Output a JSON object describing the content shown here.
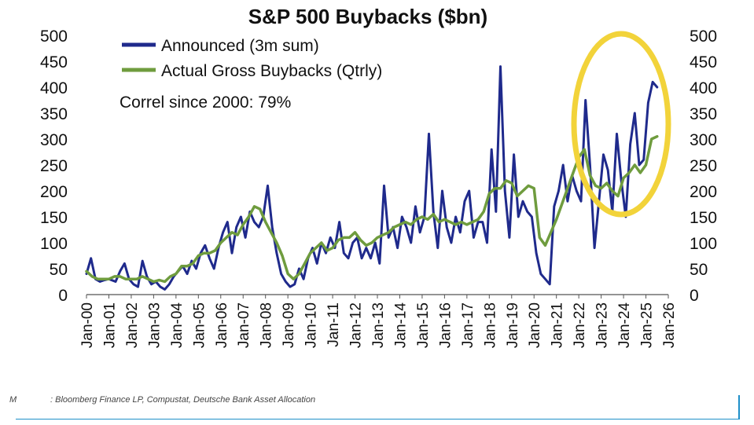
{
  "chart_data": {
    "type": "line",
    "title": "S&P 500 Buybacks ($bn)",
    "annotation": "Correl since 2000: 79%",
    "ylim": [
      0,
      500
    ],
    "yticks": [
      0,
      50,
      100,
      150,
      200,
      250,
      300,
      350,
      400,
      450,
      500
    ],
    "xlim": [
      2000,
      2026
    ],
    "xticks": [
      "Jan-00",
      "Jan-01",
      "Jan-02",
      "Jan-03",
      "Jan-04",
      "Jan-05",
      "Jan-06",
      "Jan-07",
      "Jan-08",
      "Jan-09",
      "Jan-10",
      "Jan-11",
      "Jan-12",
      "Jan-13",
      "Jan-14",
      "Jan-15",
      "Jan-16",
      "Jan-17",
      "Jan-18",
      "Jan-19",
      "Jan-20",
      "Jan-21",
      "Jan-22",
      "Jan-23",
      "Jan-24",
      "Jan-25",
      "Jan-26"
    ],
    "legend_position": "top-left",
    "series": [
      {
        "name": "Announced (3m sum)",
        "color": "#1f2a8c",
        "x": [
          2000.0,
          2000.2,
          2000.4,
          2000.6,
          2000.8,
          2001.0,
          2001.3,
          2001.5,
          2001.7,
          2001.9,
          2002.1,
          2002.3,
          2002.5,
          2002.7,
          2002.9,
          2003.1,
          2003.3,
          2003.5,
          2003.7,
          2003.9,
          2004.1,
          2004.3,
          2004.5,
          2004.7,
          2004.9,
          2005.1,
          2005.3,
          2005.5,
          2005.7,
          2005.9,
          2006.1,
          2006.3,
          2006.5,
          2006.7,
          2006.9,
          2007.1,
          2007.3,
          2007.5,
          2007.7,
          2007.9,
          2008.1,
          2008.3,
          2008.5,
          2008.7,
          2008.9,
          2009.1,
          2009.3,
          2009.5,
          2009.7,
          2009.9,
          2010.1,
          2010.3,
          2010.5,
          2010.7,
          2010.9,
          2011.1,
          2011.3,
          2011.5,
          2011.7,
          2011.9,
          2012.1,
          2012.3,
          2012.5,
          2012.7,
          2012.9,
          2013.1,
          2013.3,
          2013.5,
          2013.7,
          2013.9,
          2014.1,
          2014.3,
          2014.5,
          2014.7,
          2014.9,
          2015.1,
          2015.3,
          2015.5,
          2015.7,
          2015.9,
          2016.1,
          2016.3,
          2016.5,
          2016.7,
          2016.9,
          2017.1,
          2017.3,
          2017.5,
          2017.7,
          2017.9,
          2018.1,
          2018.3,
          2018.5,
          2018.7,
          2018.9,
          2019.1,
          2019.3,
          2019.5,
          2019.7,
          2019.9,
          2020.1,
          2020.3,
          2020.5,
          2020.7,
          2020.9,
          2021.1,
          2021.3,
          2021.5,
          2021.7,
          2021.9,
          2022.1,
          2022.3,
          2022.5,
          2022.7,
          2022.9,
          2023.1,
          2023.3,
          2023.5,
          2023.7,
          2023.9,
          2024.1,
          2024.3,
          2024.5,
          2024.7,
          2024.9,
          2025.1,
          2025.3,
          2025.5
        ],
        "values": [
          40,
          70,
          30,
          25,
          28,
          30,
          25,
          45,
          60,
          30,
          20,
          15,
          65,
          35,
          20,
          25,
          15,
          10,
          20,
          35,
          45,
          55,
          40,
          65,
          50,
          80,
          95,
          70,
          50,
          90,
          120,
          140,
          80,
          130,
          150,
          110,
          160,
          140,
          130,
          150,
          210,
          130,
          80,
          40,
          25,
          15,
          20,
          50,
          30,
          70,
          90,
          60,
          100,
          80,
          110,
          90,
          140,
          80,
          70,
          100,
          110,
          70,
          90,
          70,
          100,
          60,
          210,
          110,
          130,
          90,
          150,
          130,
          100,
          170,
          120,
          150,
          310,
          160,
          90,
          200,
          130,
          100,
          150,
          120,
          180,
          200,
          110,
          140,
          140,
          100,
          280,
          160,
          440,
          200,
          110,
          270,
          150,
          180,
          160,
          150,
          80,
          40,
          30,
          20,
          170,
          200,
          250,
          180,
          230,
          200,
          180,
          375,
          250,
          90,
          180,
          270,
          240,
          160,
          310,
          220,
          150,
          290,
          350,
          250,
          260,
          370,
          410,
          400
        ]
      },
      {
        "name": "Actual Gross Buybacks (Qtrly)",
        "color": "#6f9c3e",
        "x": [
          2000.0,
          2000.25,
          2000.5,
          2000.75,
          2001.0,
          2001.25,
          2001.5,
          2001.75,
          2002.0,
          2002.25,
          2002.5,
          2002.75,
          2003.0,
          2003.25,
          2003.5,
          2003.75,
          2004.0,
          2004.25,
          2004.5,
          2004.75,
          2005.0,
          2005.25,
          2005.5,
          2005.75,
          2006.0,
          2006.25,
          2006.5,
          2006.75,
          2007.0,
          2007.25,
          2007.5,
          2007.75,
          2008.0,
          2008.25,
          2008.5,
          2008.75,
          2009.0,
          2009.25,
          2009.5,
          2009.75,
          2010.0,
          2010.25,
          2010.5,
          2010.75,
          2011.0,
          2011.25,
          2011.5,
          2011.75,
          2012.0,
          2012.25,
          2012.5,
          2012.75,
          2013.0,
          2013.25,
          2013.5,
          2013.75,
          2014.0,
          2014.25,
          2014.5,
          2014.75,
          2015.0,
          2015.25,
          2015.5,
          2015.75,
          2016.0,
          2016.25,
          2016.5,
          2016.75,
          2017.0,
          2017.25,
          2017.5,
          2017.75,
          2018.0,
          2018.25,
          2018.5,
          2018.75,
          2019.0,
          2019.25,
          2019.5,
          2019.75,
          2020.0,
          2020.25,
          2020.5,
          2020.75,
          2021.0,
          2021.25,
          2021.5,
          2021.75,
          2022.0,
          2022.25,
          2022.5,
          2022.75,
          2023.0,
          2023.25,
          2023.5,
          2023.75,
          2024.0,
          2024.25,
          2024.5,
          2024.75,
          2025.0,
          2025.25,
          2025.5
        ],
        "values": [
          45,
          35,
          30,
          30,
          30,
          35,
          35,
          30,
          30,
          30,
          35,
          30,
          25,
          28,
          25,
          35,
          40,
          55,
          55,
          60,
          75,
          80,
          80,
          85,
          100,
          110,
          120,
          115,
          135,
          150,
          170,
          165,
          140,
          120,
          100,
          75,
          40,
          30,
          40,
          60,
          80,
          90,
          100,
          85,
          90,
          105,
          110,
          110,
          120,
          105,
          95,
          100,
          110,
          115,
          120,
          130,
          135,
          140,
          135,
          145,
          150,
          145,
          155,
          140,
          145,
          140,
          135,
          140,
          135,
          140,
          145,
          160,
          195,
          205,
          205,
          220,
          215,
          190,
          200,
          210,
          205,
          110,
          95,
          120,
          145,
          175,
          205,
          235,
          265,
          280,
          230,
          210,
          205,
          215,
          200,
          190,
          225,
          235,
          250,
          235,
          250,
          300,
          305
        ]
      }
    ]
  },
  "footer": {
    "source_prefix": "M",
    "source_text": ": Bloomberg Finance LP, Compustat, Deutsche Bank Asset Allocation"
  },
  "highlight": {
    "color": "#f2d33a"
  }
}
